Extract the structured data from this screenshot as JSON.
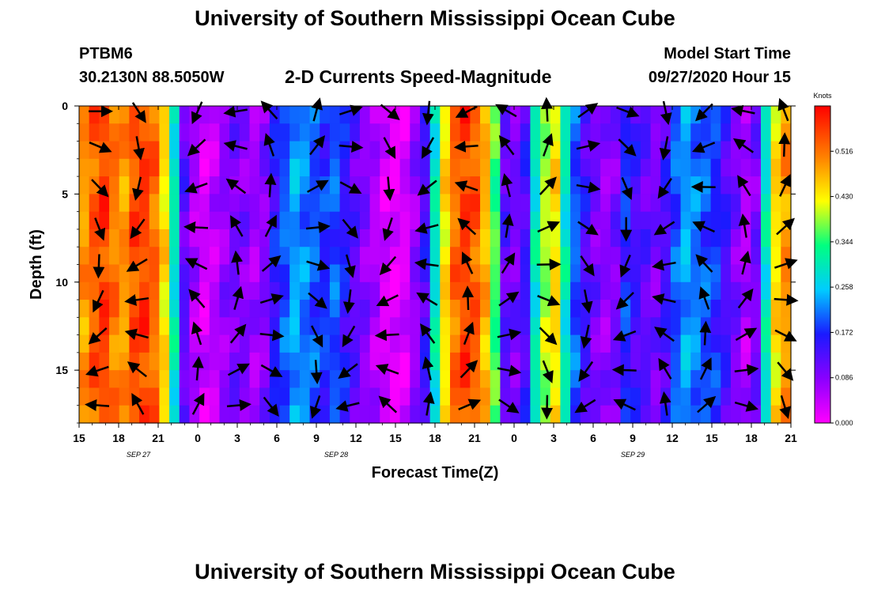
{
  "page": {
    "title_top": "University of Southern Mississippi Ocean Cube",
    "title_bottom": "University of Southern Mississippi Ocean Cube",
    "station_id": "PTBM6",
    "station_coords": "30.2130N 88.5050W",
    "subtitle": "2-D Currents Speed-Magnitude",
    "model_start_label": "Model Start Time",
    "model_start_value": "09/27/2020 Hour 15"
  },
  "colors": {
    "scale": [
      "#ff00ff",
      "#8a00ff",
      "#1a1aff",
      "#00ccff",
      "#00ff80",
      "#ffff00",
      "#ff8000",
      "#ff0000"
    ],
    "arrow": "#000000"
  },
  "chart_data": {
    "type": "heatmap",
    "title": "2-D Currents Speed-Magnitude",
    "xlabel": "Forecast Time(Z)",
    "ylabel": "Depth (ft)",
    "x_tick_labels": [
      "15",
      "18",
      "21",
      "0",
      "3",
      "6",
      "9",
      "12",
      "15",
      "18",
      "21",
      "0",
      "3",
      "6",
      "9",
      "12",
      "15",
      "18",
      "21"
    ],
    "date_labels": [
      {
        "text": "SEP 27",
        "tick_index": 1.5
      },
      {
        "text": "SEP 28",
        "tick_index": 6.5
      },
      {
        "text": "SEP 29",
        "tick_index": 14
      }
    ],
    "x_range_hours": [
      0,
      54
    ],
    "y_tick_labels": [
      "0",
      "5",
      "10",
      "15"
    ],
    "y_tick_values": [
      0,
      5,
      10,
      15
    ],
    "ylim": [
      0,
      18
    ],
    "colorbar": {
      "title": "Knots",
      "tick_labels": [
        "0.000",
        "0.086",
        "0.172",
        "0.258",
        "0.344",
        "0.430",
        "0.516"
      ],
      "tick_values": [
        0.0,
        0.086,
        0.172,
        0.258,
        0.344,
        0.43,
        0.516
      ],
      "range": [
        0,
        0.602
      ]
    },
    "speed_profile_knots": [
      0.5,
      0.54,
      0.56,
      0.52,
      0.5,
      0.55,
      0.56,
      0.53,
      0.45,
      0.3,
      0.12,
      0.06,
      0.03,
      0.05,
      0.08,
      0.1,
      0.09,
      0.07,
      0.09,
      0.16,
      0.2,
      0.24,
      0.22,
      0.2,
      0.18,
      0.2,
      0.16,
      0.12,
      0.09,
      0.06,
      0.03,
      0.02,
      0.03,
      0.08,
      0.14,
      0.3,
      0.45,
      0.53,
      0.56,
      0.54,
      0.48,
      0.36,
      0.12,
      0.1,
      0.14,
      0.3,
      0.4,
      0.45,
      0.3,
      0.2,
      0.14,
      0.1,
      0.08,
      0.1,
      0.18,
      0.14,
      0.12,
      0.1,
      0.14,
      0.2,
      0.24,
      0.22,
      0.2,
      0.18,
      0.14,
      0.1,
      0.06,
      0.1,
      0.3,
      0.45,
      0.5
    ],
    "arrow_columns_hours": [
      1.5,
      4.5,
      9,
      12,
      14.5,
      18,
      20.5,
      23.5,
      26.5,
      29.5,
      32.5,
      35.5,
      38.5,
      41.5,
      44.5,
      47.5,
      50.5,
      53.5
    ],
    "arrow_depths_ft": [
      0.3,
      2.3,
      4.6,
      6.9,
      9.0,
      11.0,
      13.0,
      15.0,
      17.0
    ]
  }
}
